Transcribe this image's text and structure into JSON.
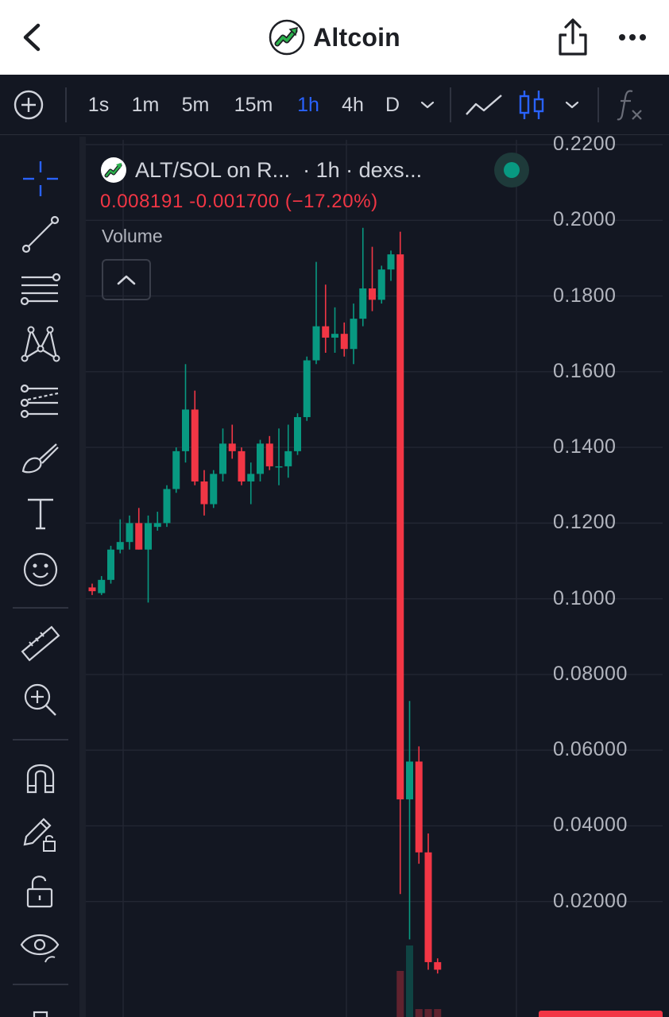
{
  "app_bar": {
    "title": "Altcoin",
    "back_icon": "chevron-left-icon",
    "share_icon": "share-icon",
    "more_icon": "more-horizontal-icon"
  },
  "toolbar": {
    "intervals": [
      "1s",
      "1m",
      "5m",
      "15m",
      "1h",
      "4h",
      "D"
    ],
    "active_interval": "1h",
    "accent_color": "#2962ff"
  },
  "legend": {
    "symbol": "ALT/SOL on R...",
    "interval_source": "· 1h · dexs...",
    "ohlc_line": "0.008191  -0.001700 (−17.20%)",
    "status_color": "#089981"
  },
  "volume_label": "Volume",
  "colors": {
    "up": "#089981",
    "down": "#f23645",
    "background": "#131722",
    "grid": "#232733"
  },
  "chart_data": {
    "type": "candlestick",
    "interval": "1h",
    "y_axis_labels": [
      "0.2200",
      "0.2000",
      "0.1800",
      "0.1600",
      "0.1400",
      "0.1200",
      "0.1000",
      "0.08000",
      "0.06000",
      "0.04000",
      "0.02000"
    ],
    "ylim": [
      0.0,
      0.22
    ],
    "candles": [
      {
        "o": 0.103,
        "h": 0.104,
        "l": 0.101,
        "c": 0.102
      },
      {
        "o": 0.1015,
        "h": 0.106,
        "l": 0.101,
        "c": 0.105
      },
      {
        "o": 0.105,
        "h": 0.114,
        "l": 0.104,
        "c": 0.113
      },
      {
        "o": 0.113,
        "h": 0.121,
        "l": 0.112,
        "c": 0.115
      },
      {
        "o": 0.115,
        "h": 0.122,
        "l": 0.113,
        "c": 0.12
      },
      {
        "o": 0.12,
        "h": 0.124,
        "l": 0.113,
        "c": 0.113
      },
      {
        "o": 0.113,
        "h": 0.122,
        "l": 0.099,
        "c": 0.12
      },
      {
        "o": 0.119,
        "h": 0.123,
        "l": 0.118,
        "c": 0.12
      },
      {
        "o": 0.12,
        "h": 0.13,
        "l": 0.119,
        "c": 0.129
      },
      {
        "o": 0.129,
        "h": 0.14,
        "l": 0.128,
        "c": 0.139
      },
      {
        "o": 0.139,
        "h": 0.162,
        "l": 0.136,
        "c": 0.15
      },
      {
        "o": 0.15,
        "h": 0.155,
        "l": 0.13,
        "c": 0.131
      },
      {
        "o": 0.131,
        "h": 0.134,
        "l": 0.122,
        "c": 0.125
      },
      {
        "o": 0.125,
        "h": 0.134,
        "l": 0.124,
        "c": 0.133
      },
      {
        "o": 0.133,
        "h": 0.145,
        "l": 0.131,
        "c": 0.141
      },
      {
        "o": 0.141,
        "h": 0.146,
        "l": 0.137,
        "c": 0.139
      },
      {
        "o": 0.139,
        "h": 0.14,
        "l": 0.13,
        "c": 0.131
      },
      {
        "o": 0.131,
        "h": 0.136,
        "l": 0.125,
        "c": 0.133
      },
      {
        "o": 0.133,
        "h": 0.142,
        "l": 0.131,
        "c": 0.141
      },
      {
        "o": 0.141,
        "h": 0.143,
        "l": 0.134,
        "c": 0.135
      },
      {
        "o": 0.135,
        "h": 0.145,
        "l": 0.13,
        "c": 0.135
      },
      {
        "o": 0.135,
        "h": 0.146,
        "l": 0.132,
        "c": 0.139
      },
      {
        "o": 0.139,
        "h": 0.149,
        "l": 0.138,
        "c": 0.148
      },
      {
        "o": 0.148,
        "h": 0.164,
        "l": 0.147,
        "c": 0.163
      },
      {
        "o": 0.163,
        "h": 0.189,
        "l": 0.162,
        "c": 0.172
      },
      {
        "o": 0.172,
        "h": 0.183,
        "l": 0.165,
        "c": 0.169
      },
      {
        "o": 0.169,
        "h": 0.177,
        "l": 0.165,
        "c": 0.17
      },
      {
        "o": 0.17,
        "h": 0.173,
        "l": 0.164,
        "c": 0.166
      },
      {
        "o": 0.166,
        "h": 0.178,
        "l": 0.162,
        "c": 0.174
      },
      {
        "o": 0.174,
        "h": 0.198,
        "l": 0.172,
        "c": 0.182
      },
      {
        "o": 0.182,
        "h": 0.193,
        "l": 0.176,
        "c": 0.179
      },
      {
        "o": 0.179,
        "h": 0.188,
        "l": 0.178,
        "c": 0.187
      },
      {
        "o": 0.187,
        "h": 0.192,
        "l": 0.184,
        "c": 0.191
      },
      {
        "o": 0.191,
        "h": 0.197,
        "l": 0.022,
        "c": 0.047
      },
      {
        "o": 0.047,
        "h": 0.073,
        "l": 0.01,
        "c": 0.057
      },
      {
        "o": 0.057,
        "h": 0.061,
        "l": 0.03,
        "c": 0.033
      },
      {
        "o": 0.033,
        "h": 0.038,
        "l": 0.002,
        "c": 0.004
      },
      {
        "o": 0.004,
        "h": 0.005,
        "l": 0.001,
        "c": 0.002
      }
    ]
  }
}
